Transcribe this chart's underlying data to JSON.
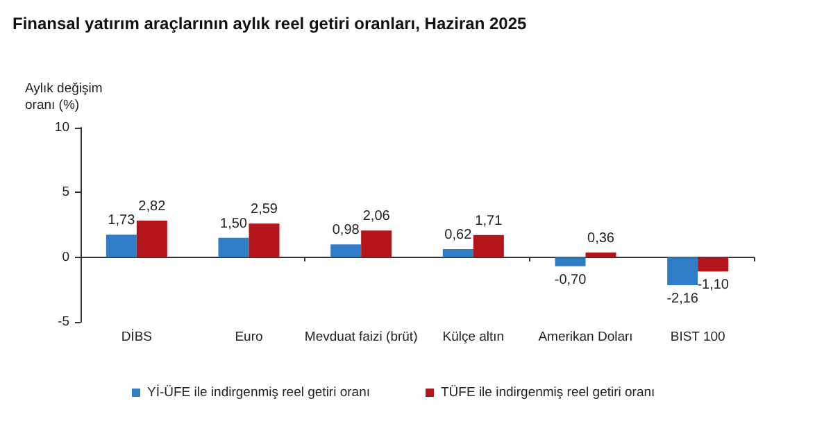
{
  "chart_data": {
    "type": "bar",
    "title": "Finansal yatırım araçlarının aylık reel getiri oranları, Haziran 2025",
    "ylabel": "Aylık değişim oranı (%)",
    "categories": [
      "DİBS",
      "Euro",
      "Mevduat faizi (brüt)",
      "Külçe altın",
      "Amerikan Doları",
      "BIST 100"
    ],
    "series": [
      {
        "name": "Yİ-ÜFE ile indirgenmiş reel getiri oranı",
        "color": "#2e7dc6",
        "values": [
          1.73,
          1.5,
          0.98,
          0.62,
          -0.7,
          -2.16
        ],
        "value_labels": [
          "1,73",
          "1,50",
          "0,98",
          "0,62",
          "-0,70",
          "-2,16"
        ]
      },
      {
        "name": "TÜFE ile indirgenmiş reel getiri oranı",
        "color": "#b3151b",
        "values": [
          2.82,
          2.59,
          2.06,
          1.71,
          0.36,
          -1.1
        ],
        "value_labels": [
          "2,82",
          "2,59",
          "2,06",
          "1,71",
          "0,36",
          "-1,10"
        ]
      }
    ],
    "ylim": [
      -5,
      10
    ],
    "yticks": [
      -5,
      0,
      5,
      10
    ],
    "legend": "bottom"
  }
}
